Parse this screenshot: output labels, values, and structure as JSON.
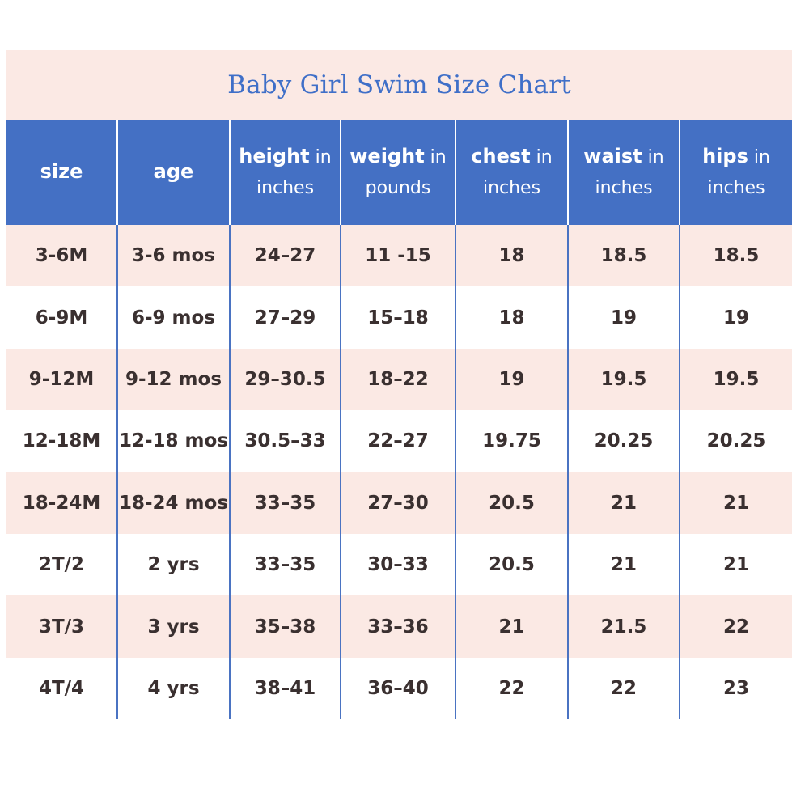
{
  "title": "Baby Girl Swim Size Chart",
  "headers": [
    {
      "bold": "size",
      "rest": "",
      "line2": ""
    },
    {
      "bold": "age",
      "rest": "",
      "line2": ""
    },
    {
      "bold": "height",
      "rest": " in",
      "line2": "inches"
    },
    {
      "bold": "weight",
      "rest": " in",
      "line2": "pounds"
    },
    {
      "bold": "chest",
      "rest": " in",
      "line2": "inches"
    },
    {
      "bold": "waist",
      "rest": " in",
      "line2": "inches"
    },
    {
      "bold": "hips",
      "rest": " in",
      "line2": "inches"
    }
  ],
  "rows": [
    [
      "3-6M",
      "3-6 mos",
      "24–27",
      "11 -15",
      "18",
      "18.5",
      "18.5"
    ],
    [
      "6-9M",
      "6-9 mos",
      "27–29",
      "15–18",
      "18",
      "19",
      "19"
    ],
    [
      "9-12M",
      "9-12 mos",
      "29–30.5",
      "18–22",
      "19",
      "19.5",
      "19.5"
    ],
    [
      "12-18M",
      "12-18 mos",
      "30.5–33",
      "22–27",
      "19.75",
      "20.25",
      "20.25"
    ],
    [
      "18-24M",
      "18-24 mos",
      "33–35",
      "27–30",
      "20.5",
      "21",
      "21"
    ],
    [
      "2T/2",
      "2 yrs",
      "33–35",
      "30–33",
      "20.5",
      "21",
      "21"
    ],
    [
      "3T/3",
      "3 yrs",
      "35–38",
      "33–36",
      "21",
      "21.5",
      "22"
    ],
    [
      "4T/4",
      "4 yrs",
      "38–41",
      "36–40",
      "22",
      "22",
      "23"
    ]
  ],
  "colors": {
    "header_bg": "#4470c4",
    "title_text": "#3f6fc8",
    "stripe_bg": "#fbe9e4",
    "cell_text": "#3a3030"
  }
}
